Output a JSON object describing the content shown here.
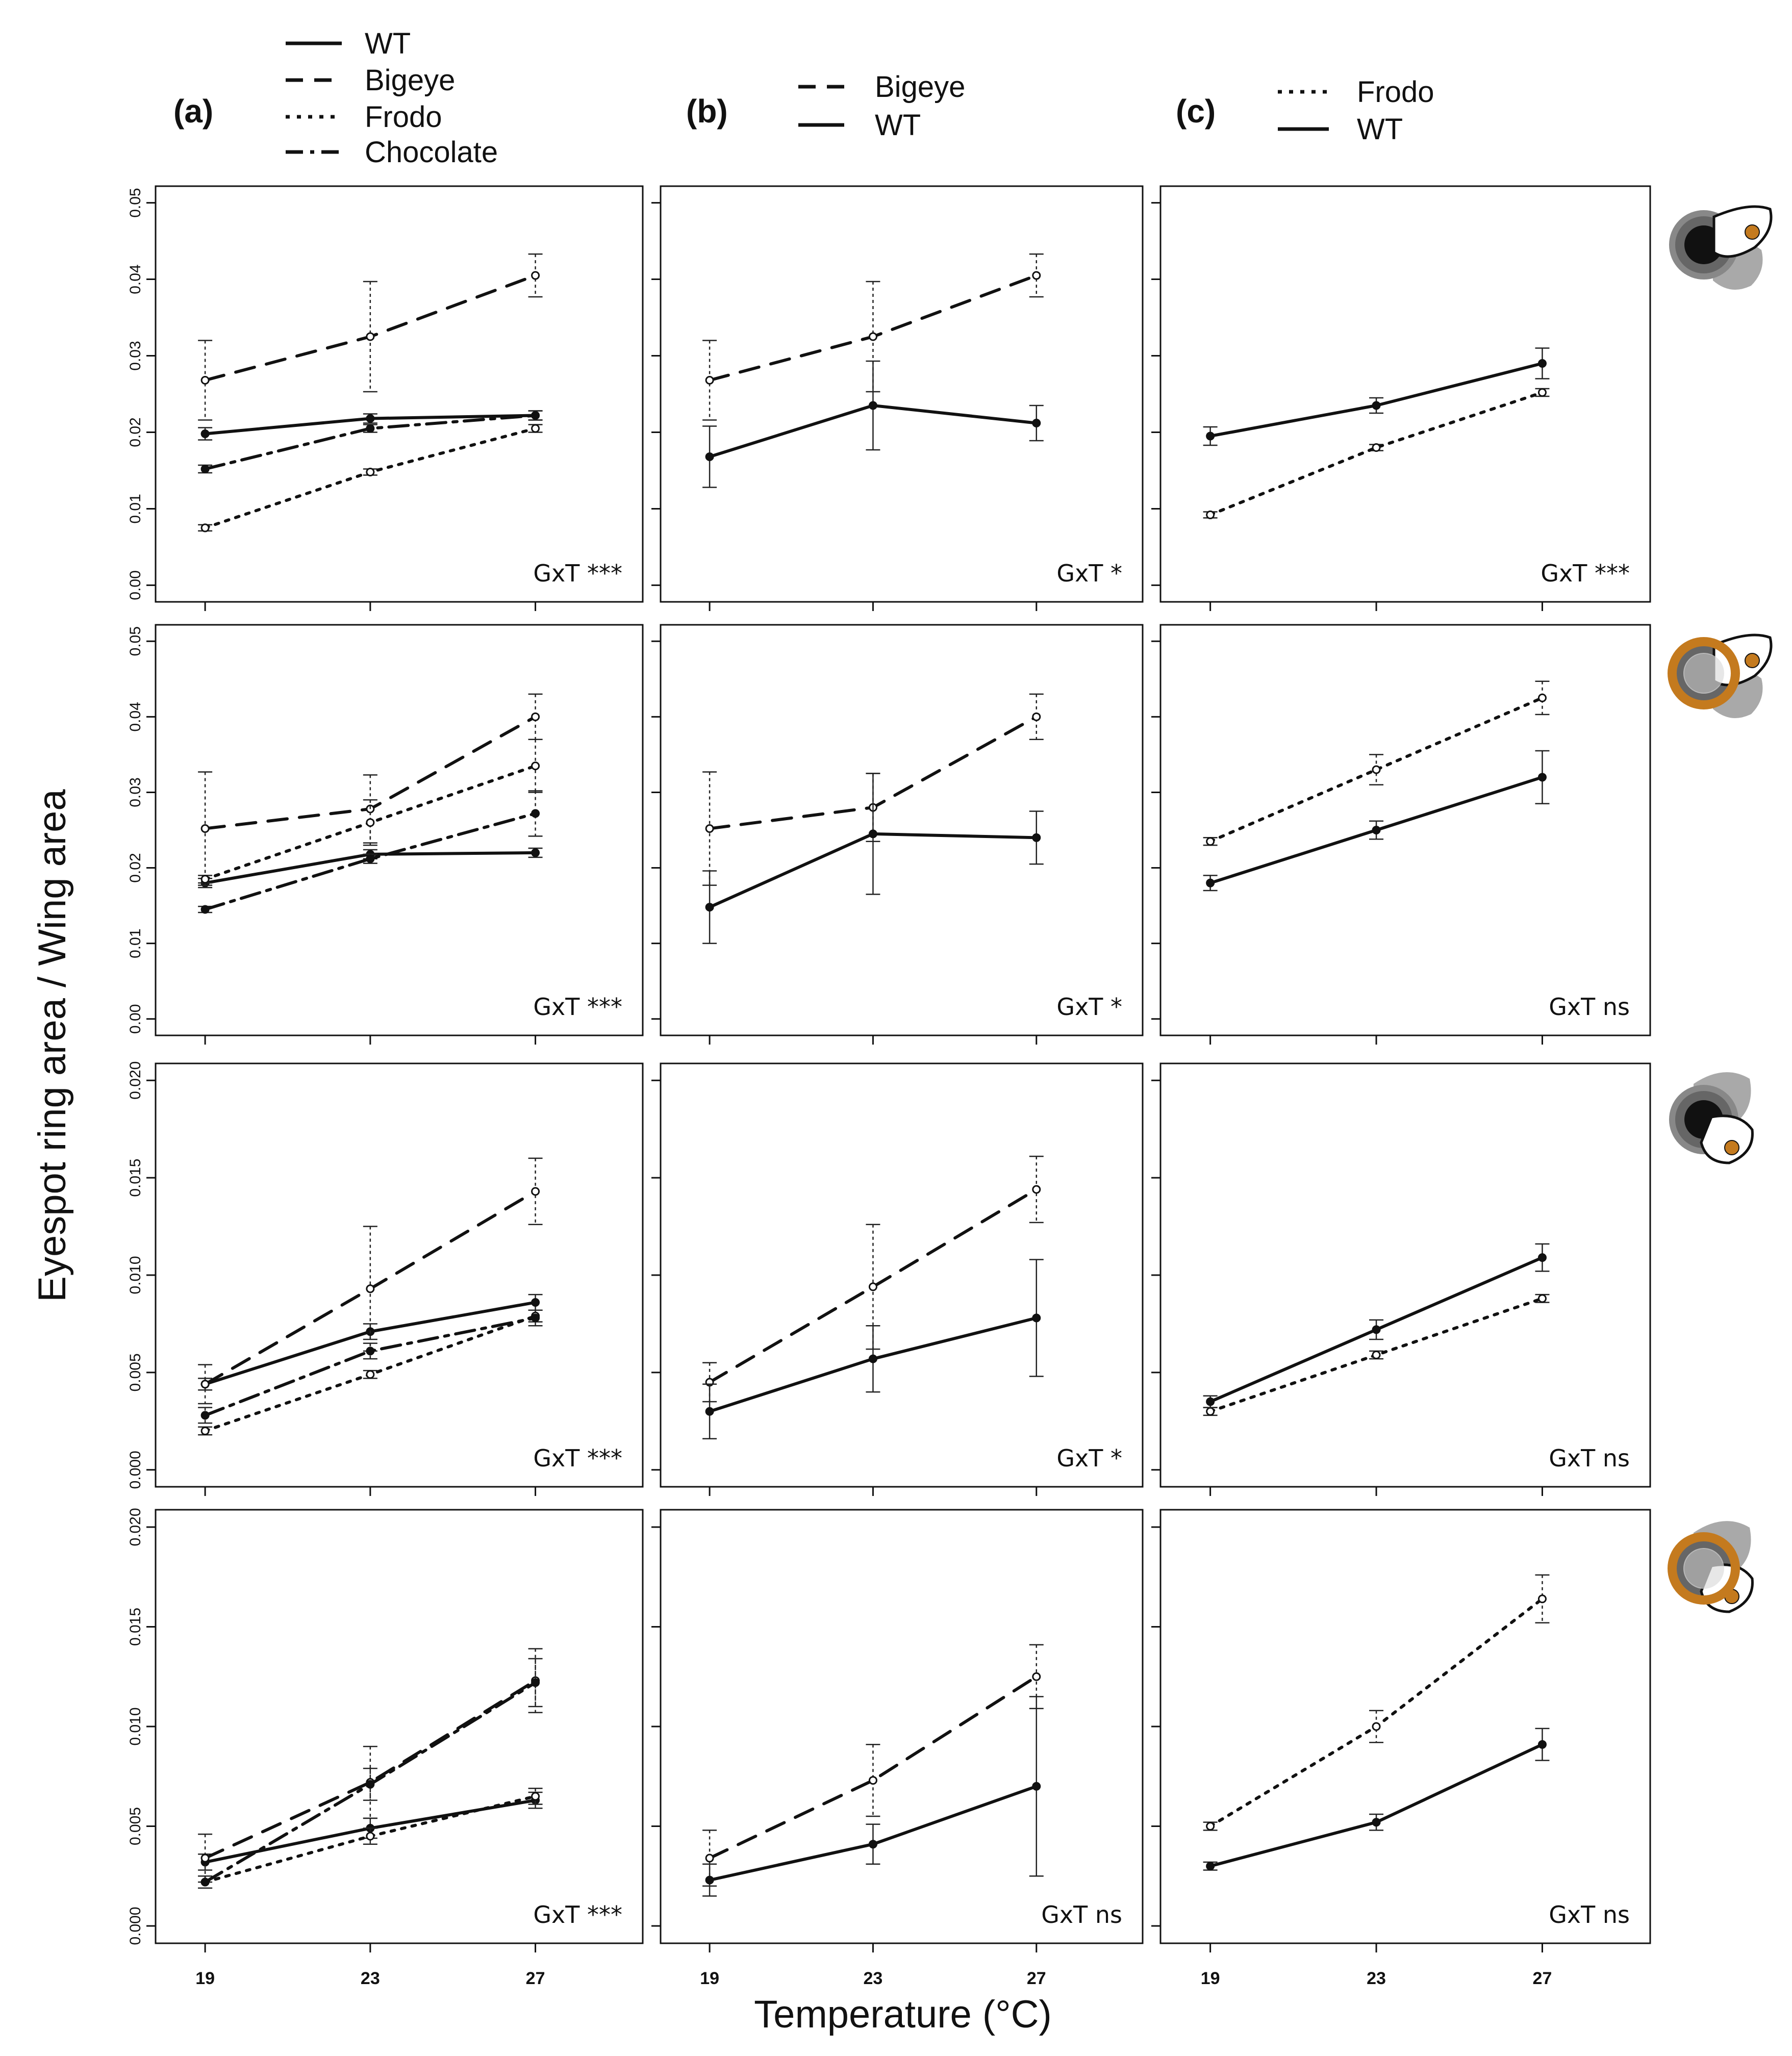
{
  "figure": {
    "ylabel": "Eyespot ring area / Wing area",
    "xlabel": "Temperature (°C)",
    "x_ticks": [
      "19",
      "23",
      "27"
    ],
    "panel_letters": [
      "(a)",
      "(b)",
      "(c)"
    ]
  },
  "legends": [
    {
      "column": "a",
      "entries": [
        {
          "label": "WT",
          "style": "solid"
        },
        {
          "label": "Bigeye",
          "style": "dashed"
        },
        {
          "label": "Frodo",
          "style": "dotted"
        },
        {
          "label": "Chocolate",
          "style": "dashdot"
        }
      ]
    },
    {
      "column": "b",
      "entries": [
        {
          "label": "Bigeye",
          "style": "dashed"
        },
        {
          "label": "WT",
          "style": "solid"
        }
      ]
    },
    {
      "column": "c",
      "entries": [
        {
          "label": "Frodo",
          "style": "dotted"
        },
        {
          "label": "WT",
          "style": "solid"
        }
      ]
    }
  ],
  "row_icons": [
    {
      "ring_color": "#666666",
      "wing": "forewing"
    },
    {
      "ring_color": "#c47a1e",
      "wing": "forewing"
    },
    {
      "ring_color": "#666666",
      "wing": "hindwing"
    },
    {
      "ring_color": "#c47a1e",
      "wing": "hindwing"
    }
  ],
  "colors": {
    "line": "#111111",
    "open_marker": "#ffffff",
    "accent_orange": "#c47a1e",
    "icon_gray": "#9a9a9a"
  },
  "chart_data": [
    {
      "type": "line",
      "row": 1,
      "column": "a",
      "ylim": [
        0,
        0.05
      ],
      "y_ticks": [
        "0.00",
        "0.01",
        "0.02",
        "0.03",
        "0.04",
        "0.05"
      ],
      "x": [
        19,
        23,
        27
      ],
      "annotation": "GxT ***",
      "series": [
        {
          "name": "WT",
          "style": "solid",
          "values": [
            0.0198,
            0.0218,
            0.0222
          ],
          "err": [
            0.0008,
            0.0006,
            0.0006
          ]
        },
        {
          "name": "Bigeye",
          "style": "dashed",
          "values": [
            0.0268,
            0.0325,
            0.0405
          ],
          "err": [
            0.0052,
            0.0072,
            0.0028
          ]
        },
        {
          "name": "Frodo",
          "style": "dotted",
          "values": [
            0.0075,
            0.0148,
            0.0205
          ],
          "err": [
            0.0004,
            0.0004,
            0.0005
          ]
        },
        {
          "name": "Chocolate",
          "style": "dashdot",
          "values": [
            0.0152,
            0.0205,
            0.0222
          ],
          "err": [
            0.0005,
            0.0005,
            0.0006
          ]
        }
      ]
    },
    {
      "type": "line",
      "row": 1,
      "column": "b",
      "ylim": [
        0,
        0.05
      ],
      "x": [
        19,
        23,
        27
      ],
      "annotation": "GxT *",
      "series": [
        {
          "name": "Bigeye",
          "style": "dashed",
          "values": [
            0.0268,
            0.0325,
            0.0405
          ],
          "err": [
            0.0052,
            0.0072,
            0.0028
          ]
        },
        {
          "name": "WT",
          "style": "solid",
          "values": [
            0.0168,
            0.0235,
            0.0212
          ],
          "err": [
            0.004,
            0.0058,
            0.0023
          ]
        }
      ]
    },
    {
      "type": "line",
      "row": 1,
      "column": "c",
      "ylim": [
        0,
        0.05
      ],
      "x": [
        19,
        23,
        27
      ],
      "annotation": "GxT ***",
      "series": [
        {
          "name": "Frodo",
          "style": "dotted",
          "values": [
            0.0092,
            0.018,
            0.0252
          ],
          "err": [
            0.0004,
            0.0004,
            0.0005
          ]
        },
        {
          "name": "WT",
          "style": "solid",
          "values": [
            0.0195,
            0.0235,
            0.029
          ],
          "err": [
            0.0012,
            0.001,
            0.002
          ]
        }
      ]
    },
    {
      "type": "line",
      "row": 2,
      "column": "a",
      "ylim": [
        0,
        0.05
      ],
      "y_ticks": [
        "0.00",
        "0.01",
        "0.02",
        "0.03",
        "0.04",
        "0.05"
      ],
      "x": [
        19,
        23,
        27
      ],
      "annotation": "GxT ***",
      "series": [
        {
          "name": "WT",
          "style": "solid",
          "values": [
            0.018,
            0.0218,
            0.022
          ],
          "err": [
            0.0006,
            0.0006,
            0.0006
          ]
        },
        {
          "name": "Bigeye",
          "style": "dashed",
          "values": [
            0.0252,
            0.0278,
            0.04
          ],
          "err": [
            0.0075,
            0.0045,
            0.003
          ]
        },
        {
          "name": "Frodo",
          "style": "dotted",
          "values": [
            0.0185,
            0.026,
            0.0335
          ],
          "err": [
            0.0005,
            0.003,
            0.0035
          ]
        },
        {
          "name": "Chocolate",
          "style": "dashdot",
          "values": [
            0.0145,
            0.0212,
            0.0272
          ],
          "err": [
            0.0004,
            0.0006,
            0.003
          ]
        }
      ]
    },
    {
      "type": "line",
      "row": 2,
      "column": "b",
      "ylim": [
        0,
        0.05
      ],
      "x": [
        19,
        23,
        27
      ],
      "annotation": "GxT *",
      "series": [
        {
          "name": "Bigeye",
          "style": "dashed",
          "values": [
            0.0252,
            0.028,
            0.04
          ],
          "err": [
            0.0075,
            0.0045,
            0.003
          ]
        },
        {
          "name": "WT",
          "style": "solid",
          "values": [
            0.0148,
            0.0245,
            0.024
          ],
          "err": [
            0.0048,
            0.008,
            0.0035
          ]
        }
      ]
    },
    {
      "type": "line",
      "row": 2,
      "column": "c",
      "ylim": [
        0,
        0.05
      ],
      "x": [
        19,
        23,
        27
      ],
      "annotation": "GxT ns",
      "series": [
        {
          "name": "Frodo",
          "style": "dotted",
          "values": [
            0.0235,
            0.033,
            0.0425
          ],
          "err": [
            0.0005,
            0.002,
            0.0022
          ]
        },
        {
          "name": "WT",
          "style": "solid",
          "values": [
            0.018,
            0.025,
            0.032
          ],
          "err": [
            0.001,
            0.0012,
            0.0035
          ]
        }
      ]
    },
    {
      "type": "line",
      "row": 3,
      "column": "a",
      "ylim": [
        0,
        0.02
      ],
      "y_ticks": [
        "0.000",
        "0.005",
        "0.010",
        "0.015",
        "0.020"
      ],
      "x": [
        19,
        23,
        27
      ],
      "annotation": "GxT ***",
      "series": [
        {
          "name": "WT",
          "style": "solid",
          "values": [
            0.0044,
            0.0071,
            0.0086
          ],
          "err": [
            0.0003,
            0.0004,
            0.0004
          ]
        },
        {
          "name": "Bigeye",
          "style": "dashed",
          "values": [
            0.0044,
            0.0093,
            0.0143
          ],
          "err": [
            0.001,
            0.0032,
            0.0017
          ]
        },
        {
          "name": "Frodo",
          "style": "dotted",
          "values": [
            0.002,
            0.0049,
            0.0079
          ],
          "err": [
            0.0002,
            0.0002,
            0.0003
          ]
        },
        {
          "name": "Chocolate",
          "style": "dashdot",
          "values": [
            0.0028,
            0.0061,
            0.0078
          ],
          "err": [
            0.0004,
            0.0004,
            0.0004
          ]
        }
      ]
    },
    {
      "type": "line",
      "row": 3,
      "column": "b",
      "ylim": [
        0,
        0.02
      ],
      "x": [
        19,
        23,
        27
      ],
      "annotation": "GxT *",
      "series": [
        {
          "name": "Bigeye",
          "style": "dashed",
          "values": [
            0.0045,
            0.0094,
            0.0144
          ],
          "err": [
            0.001,
            0.0032,
            0.0017
          ]
        },
        {
          "name": "WT",
          "style": "solid",
          "values": [
            0.003,
            0.0057,
            0.0078
          ],
          "err": [
            0.0014,
            0.0017,
            0.003
          ]
        }
      ]
    },
    {
      "type": "line",
      "row": 3,
      "column": "c",
      "ylim": [
        0,
        0.02
      ],
      "x": [
        19,
        23,
        27
      ],
      "annotation": "GxT ns",
      "series": [
        {
          "name": "Frodo",
          "style": "dotted",
          "values": [
            0.003,
            0.0059,
            0.0088
          ],
          "err": [
            0.0002,
            0.0002,
            0.0002
          ]
        },
        {
          "name": "WT",
          "style": "solid",
          "values": [
            0.0035,
            0.0072,
            0.0109
          ],
          "err": [
            0.0003,
            0.0005,
            0.0007
          ]
        }
      ]
    },
    {
      "type": "line",
      "row": 4,
      "column": "a",
      "ylim": [
        0,
        0.02
      ],
      "y_ticks": [
        "0.000",
        "0.005",
        "0.010",
        "0.015",
        "0.020"
      ],
      "x": [
        19,
        23,
        27
      ],
      "annotation": "GxT ***",
      "series": [
        {
          "name": "WT",
          "style": "solid",
          "values": [
            0.0032,
            0.0049,
            0.0063
          ],
          "err": [
            0.0004,
            0.0005,
            0.0004
          ]
        },
        {
          "name": "Bigeye",
          "style": "dashed",
          "values": [
            0.0034,
            0.0072,
            0.0123
          ],
          "err": [
            0.0012,
            0.0018,
            0.0016
          ]
        },
        {
          "name": "Frodo",
          "style": "dotted",
          "values": [
            0.0022,
            0.0045,
            0.0065
          ],
          "err": [
            0.0003,
            0.0004,
            0.0004
          ]
        },
        {
          "name": "Chocolate",
          "style": "dashdot",
          "values": [
            0.0022,
            0.0071,
            0.0122
          ],
          "err": [
            0.0003,
            0.0008,
            0.0012
          ]
        }
      ]
    },
    {
      "type": "line",
      "row": 4,
      "column": "b",
      "ylim": [
        0,
        0.02
      ],
      "x": [
        19,
        23,
        27
      ],
      "annotation": "GxT ns",
      "series": [
        {
          "name": "Bigeye",
          "style": "dashed",
          "values": [
            0.0034,
            0.0073,
            0.0125
          ],
          "err": [
            0.0014,
            0.0018,
            0.0016
          ]
        },
        {
          "name": "WT",
          "style": "solid",
          "values": [
            0.0023,
            0.0041,
            0.007
          ],
          "err": [
            0.0008,
            0.001,
            0.0045
          ]
        }
      ]
    },
    {
      "type": "line",
      "row": 4,
      "column": "c",
      "ylim": [
        0,
        0.02
      ],
      "x": [
        19,
        23,
        27
      ],
      "annotation": "GxT ns",
      "series": [
        {
          "name": "Frodo",
          "style": "dotted",
          "values": [
            0.005,
            0.01,
            0.0164
          ],
          "err": [
            0.0002,
            0.0008,
            0.0012
          ]
        },
        {
          "name": "WT",
          "style": "solid",
          "values": [
            0.003,
            0.0052,
            0.0091
          ],
          "err": [
            0.0002,
            0.0004,
            0.0008
          ]
        }
      ]
    }
  ]
}
